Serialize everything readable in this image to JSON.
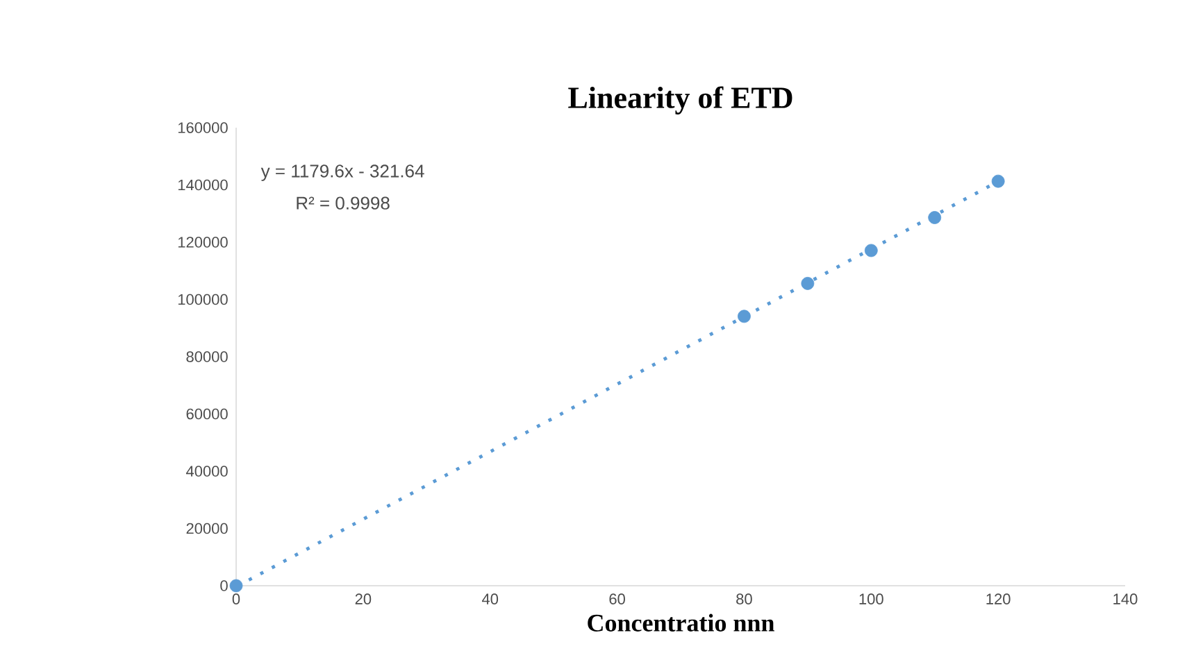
{
  "chart_data": {
    "type": "scatter",
    "title": "Linearity of ETD",
    "xlabel": "Concentratio nnn",
    "xlim": [
      0,
      140
    ],
    "xticks": [
      0,
      20,
      40,
      60,
      80,
      100,
      120,
      140
    ],
    "ylim": [
      0,
      160000
    ],
    "yticks": [
      0,
      20000,
      40000,
      60000,
      80000,
      100000,
      120000,
      140000,
      160000
    ],
    "annotations": [
      "y = 1179.6x - 321.64",
      "R² = 0.9998"
    ],
    "series": [
      {
        "color": "#5b9bd5",
        "marker": "circle",
        "x": [
          0,
          80,
          90,
          100,
          110,
          120
        ],
        "values": [
          0,
          94100,
          105600,
          117100,
          128600,
          141300
        ]
      },
      {
        "type": "line",
        "color": "#5b9bd5",
        "marker": "none",
        "line_style": "dotted",
        "x": [
          2,
          120
        ],
        "values": [
          2000,
          141200
        ]
      }
    ]
  }
}
